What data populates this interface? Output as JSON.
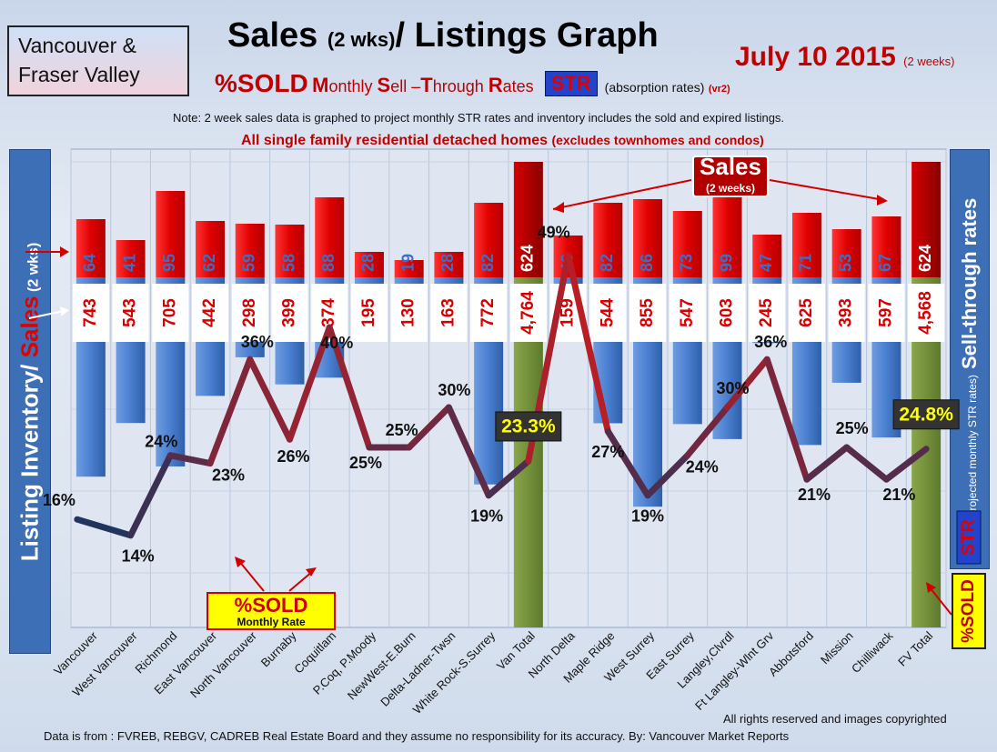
{
  "header": {
    "region_line1": "Vancouver &",
    "region_line2": "Fraser Valley",
    "title_main": "Sales ",
    "title_paren": "(2 wks)",
    "title_rest": "/ Listings Graph",
    "date_main": "July 10 2015",
    "date_small": "(2 weeks)",
    "sub_pct": "%SOLD",
    "sub_m": "M",
    "sub_onthly": "onthly ",
    "sub_s": "S",
    "sub_ell": "ell –",
    "sub_t": "T",
    "sub_hrough": "hrough ",
    "sub_r": "R",
    "sub_ates": "ates",
    "str_badge": "STR",
    "absorption": "(absorption rates)",
    "vr2": "(vr2)",
    "note": "Note: 2 week sales data is graphed to project monthly STR rates and inventory includes the sold and expired listings.",
    "scope_main": "All single family residential detached homes ",
    "scope_small": "(excludes townhomes and condos)"
  },
  "left_axis": {
    "part1": "Listing Inventory/ ",
    "part2": "Sales",
    "part3": " (2 wks)"
  },
  "right_axis": {
    "label": "Sell-through rates",
    "small": "(projected monthly STR rates)",
    "str": "STR"
  },
  "sold_box": "%SOLD",
  "footer": {
    "rights": "All rights reserved and  images copyrighted",
    "source": "Data is from : FVREB, REBGV, CADREB Real Estate Board and they assume no responsibility  for its accuracy. By: Vancouver Market Reports"
  },
  "colors": {
    "sales": "#ee1111",
    "listings": "#4a7fd0",
    "total": "#77943a",
    "line_low": "#1a3560",
    "line_high": "#e01818"
  },
  "chart_data": {
    "type": "bar",
    "categories": [
      "Vancouver",
      "West Vancouver",
      "Richmond",
      "East Vancouver",
      "North Vancouver",
      "Burnaby",
      "Coquitlam",
      "P.Coq, P.Moody",
      "NewWest-E.Burn",
      "Delta-Ladner-Twsn",
      "White Rock-S.Surrey",
      "Van Total",
      "North Delta",
      "Maple Ridge",
      "West Surrey",
      "East Surrey",
      "Langley,Clvrdl",
      "Ft Langley-Wlnt Grv",
      "Abbotsford",
      "Mission",
      "Chilliwack",
      "FV Total"
    ],
    "series": [
      {
        "name": "Sales",
        "values": [
          64,
          41,
          95,
          62,
          59,
          58,
          88,
          28,
          19,
          28,
          82,
          624,
          46,
          82,
          86,
          73,
          99,
          47,
          71,
          53,
          67,
          624
        ]
      },
      {
        "name": "Listing Inventory",
        "values": [
          743,
          543,
          705,
          442,
          298,
          399,
          374,
          195,
          130,
          163,
          772,
          4764,
          159,
          544,
          855,
          547,
          603,
          245,
          625,
          393,
          597,
          4568
        ]
      }
    ],
    "value_labels": [
      "743",
      "543",
      "705",
      "442",
      "298",
      "399",
      "374",
      "195",
      "130",
      "163",
      "772",
      "4,764",
      "159",
      "544",
      "855",
      "547",
      "603",
      "245",
      "625",
      "393",
      "597",
      "4,568"
    ],
    "str_percent": [
      16,
      14,
      24,
      23,
      36,
      26,
      40,
      25,
      25,
      30,
      19,
      23.3,
      49,
      27,
      19,
      24,
      30,
      36,
      21,
      25,
      21,
      24.8
    ],
    "str_labels": [
      "16%",
      "14%",
      "24%",
      "23%",
      "36%",
      "26%",
      "40%",
      "25%",
      "25%",
      "30%",
      "19%",
      "23.3%",
      "49%",
      "27%",
      "19%",
      "24%",
      "30%",
      "36%",
      "21%",
      "25%",
      "21%",
      "24.8%"
    ],
    "total_indices": [
      11,
      21
    ],
    "annotations": {
      "sales_callout": "Sales",
      "sales_callout_sub": "(2 weeks)",
      "sold_callout": "%SOLD",
      "sold_callout_sub": "Monthly Rate"
    },
    "grid": true
  }
}
